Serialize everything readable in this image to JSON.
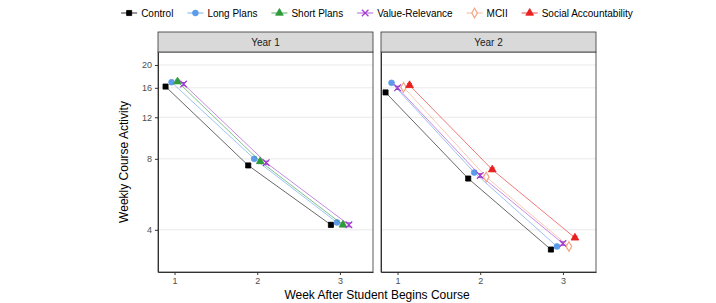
{
  "chart_data": [
    {
      "type": "line",
      "title": "Year 1",
      "x_label": "Week After Student Begins Course",
      "y_label": "Weekly Course Activity",
      "x": [
        1,
        2,
        3
      ],
      "xlim": [
        0.8,
        3.4
      ],
      "xticks": [
        1,
        2,
        3
      ],
      "ylim": [
        2.65,
        22.7
      ],
      "yticks": [
        4,
        8,
        12,
        16,
        20
      ],
      "log": "y",
      "grid": true,
      "legend": "top",
      "series": [
        {
          "name": "Control",
          "color": "#000000",
          "marker": "square",
          "values": [
            16.2,
            7.5,
            4.2
          ],
          "errors": [
            0.25,
            0.12,
            0.08
          ]
        },
        {
          "name": "Long Plans",
          "color": "#5b9bea",
          "marker": "circle",
          "values": [
            16.9,
            8.0,
            4.3
          ],
          "errors": [
            0.25,
            0.12,
            0.08
          ]
        },
        {
          "name": "Short Plans",
          "color": "#2e9a3b",
          "marker": "triangle",
          "values": [
            17.0,
            7.8,
            4.2
          ],
          "errors": [
            0.25,
            0.12,
            0.08
          ]
        },
        {
          "name": "Value-Relevance",
          "color": "#a23bd0",
          "marker": "x",
          "values": [
            16.6,
            7.7,
            4.2
          ],
          "errors": [
            0.25,
            0.12,
            0.08
          ]
        }
      ]
    },
    {
      "type": "line",
      "title": "Year 2",
      "x": [
        1,
        2,
        3
      ],
      "xlim": [
        0.8,
        3.4
      ],
      "xticks": [
        1,
        2,
        3
      ],
      "ylim": [
        2.65,
        22.7
      ],
      "yticks": [
        4,
        8,
        12,
        16,
        20
      ],
      "log": "y",
      "grid": true,
      "tick_labels": "x",
      "series": [
        {
          "name": "Control",
          "color": "#000000",
          "marker": "square",
          "values": [
            15.3,
            6.6,
            3.3
          ],
          "errors": [
            0.25,
            0.12,
            0.06
          ]
        },
        {
          "name": "Long Plans",
          "color": "#5b9bea",
          "marker": "circle",
          "values": [
            16.8,
            7.0,
            3.4
          ],
          "errors": [
            0.25,
            0.12,
            0.06
          ]
        },
        {
          "name": "Value-Relevance",
          "color": "#a23bd0",
          "marker": "x",
          "values": [
            16.0,
            6.8,
            3.5
          ],
          "errors": [
            0.25,
            0.12,
            0.06
          ]
        },
        {
          "name": "MCII",
          "color": "#f4a582",
          "marker": "diamond",
          "values": [
            16.1,
            6.7,
            3.4
          ],
          "errors": [
            0.25,
            0.12,
            0.06
          ]
        },
        {
          "name": "Social Accountability",
          "color": "#e8201f",
          "marker": "triangle",
          "values": [
            16.4,
            7.2,
            3.7
          ],
          "errors": [
            0.25,
            0.12,
            0.06
          ]
        }
      ]
    }
  ]
}
